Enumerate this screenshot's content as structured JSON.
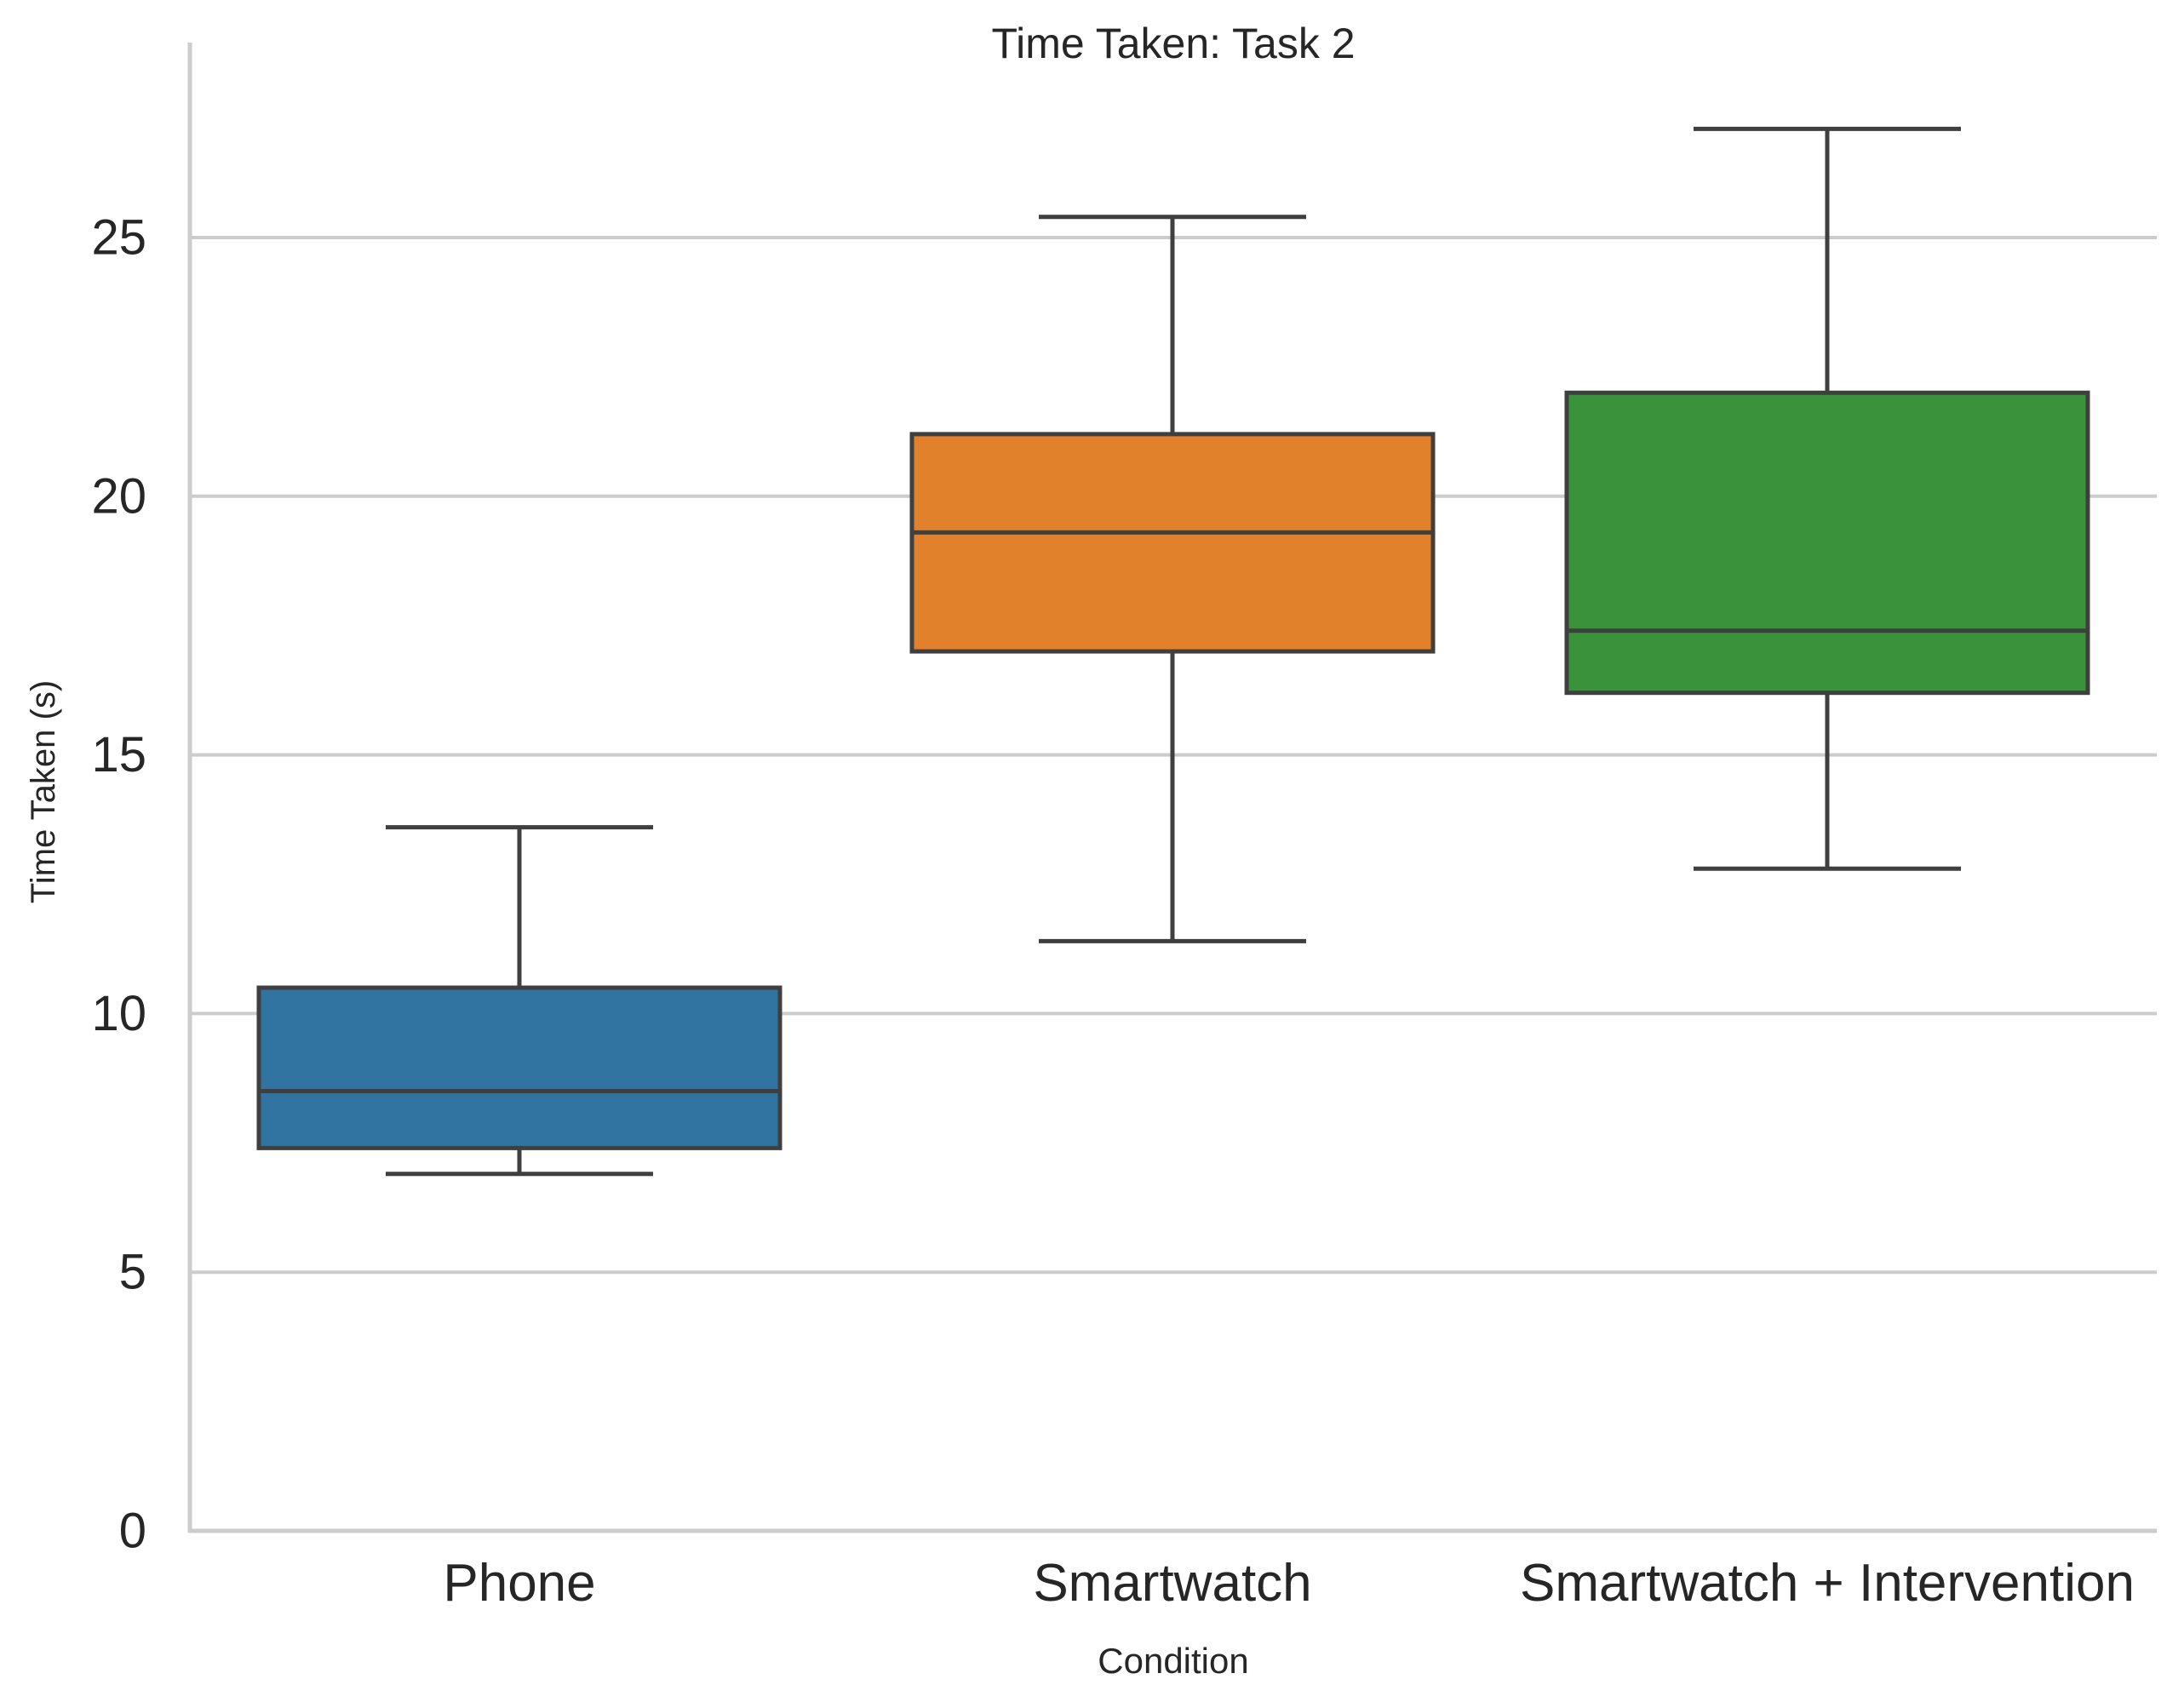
{
  "chart_data": {
    "type": "box",
    "title": "Time Taken: Task 2",
    "xlabel": "Condition",
    "ylabel": "Time Taken (s)",
    "categories": [
      "Phone",
      "Smartwatch",
      "Smartwatch + Intervention"
    ],
    "boxes": [
      {
        "name": "Phone",
        "whisker_low": 6.9,
        "q1": 7.4,
        "median": 8.5,
        "q3": 10.5,
        "whisker_high": 13.6,
        "color": "#3274a1"
      },
      {
        "name": "Smartwatch",
        "whisker_low": 11.4,
        "q1": 17.0,
        "median": 19.3,
        "q3": 21.2,
        "whisker_high": 25.4,
        "color": "#e1812c"
      },
      {
        "name": "Smartwatch + Intervention",
        "whisker_low": 12.8,
        "q1": 16.2,
        "median": 17.4,
        "q3": 22.0,
        "whisker_high": 27.1,
        "color": "#3a923a"
      }
    ],
    "ylim": [
      0,
      28
    ],
    "yticks": [
      "0",
      "5",
      "10",
      "15",
      "20",
      "25"
    ],
    "grid": "horizontal",
    "legend": "none",
    "colors": {
      "grid": "#cccccc",
      "axis": "#cccccc",
      "box_edge": "#3f3f3f",
      "text": "#262626"
    }
  }
}
